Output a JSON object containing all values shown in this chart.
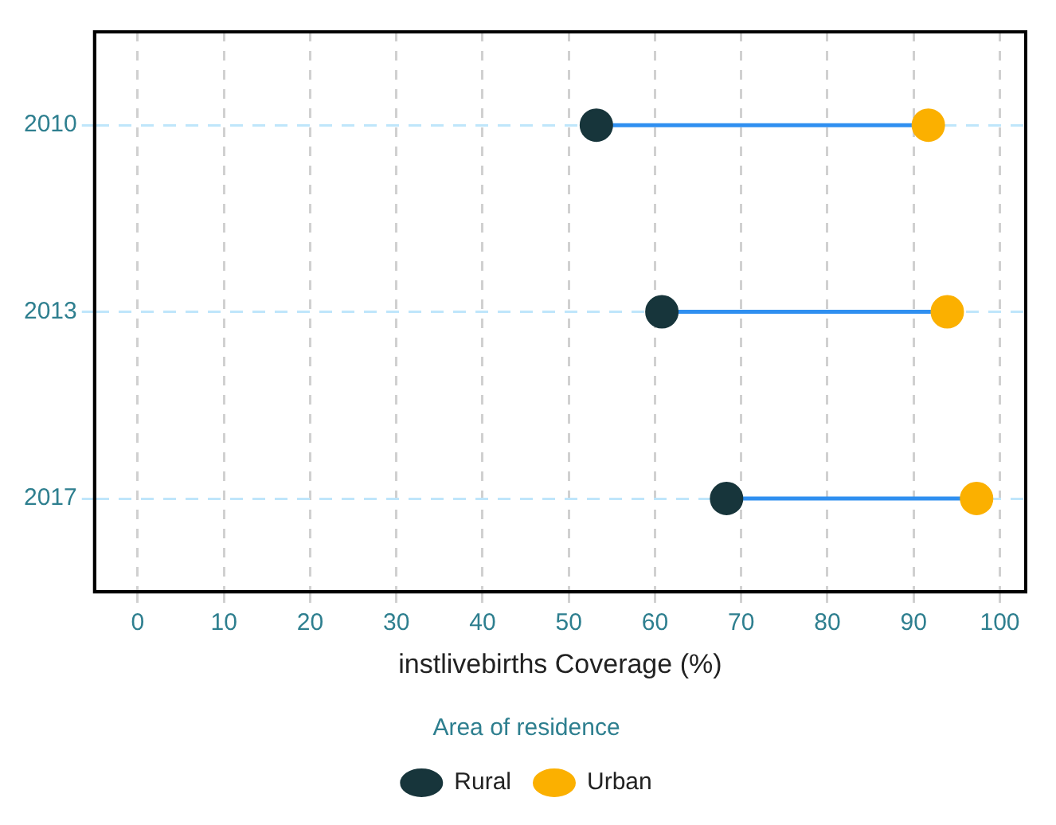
{
  "chart_data": {
    "type": "scatter",
    "orientation": "horizontal",
    "xlabel": "instlivebirths Coverage (%)",
    "legend_title": "Area of residence",
    "categories": [
      "2010",
      "2013",
      "2017"
    ],
    "xlim": [
      -5,
      103
    ],
    "xticks": [
      0,
      10,
      20,
      30,
      40,
      50,
      60,
      70,
      80,
      90,
      100
    ],
    "grid": true,
    "legend": "bottom",
    "marker": "circle",
    "series": [
      {
        "name": "Rural",
        "color": "#17353b",
        "values": [
          53.2,
          60.8,
          68.3
        ]
      },
      {
        "name": "Urban",
        "color": "#fbb000",
        "values": [
          91.7,
          93.9,
          97.3
        ]
      }
    ]
  }
}
